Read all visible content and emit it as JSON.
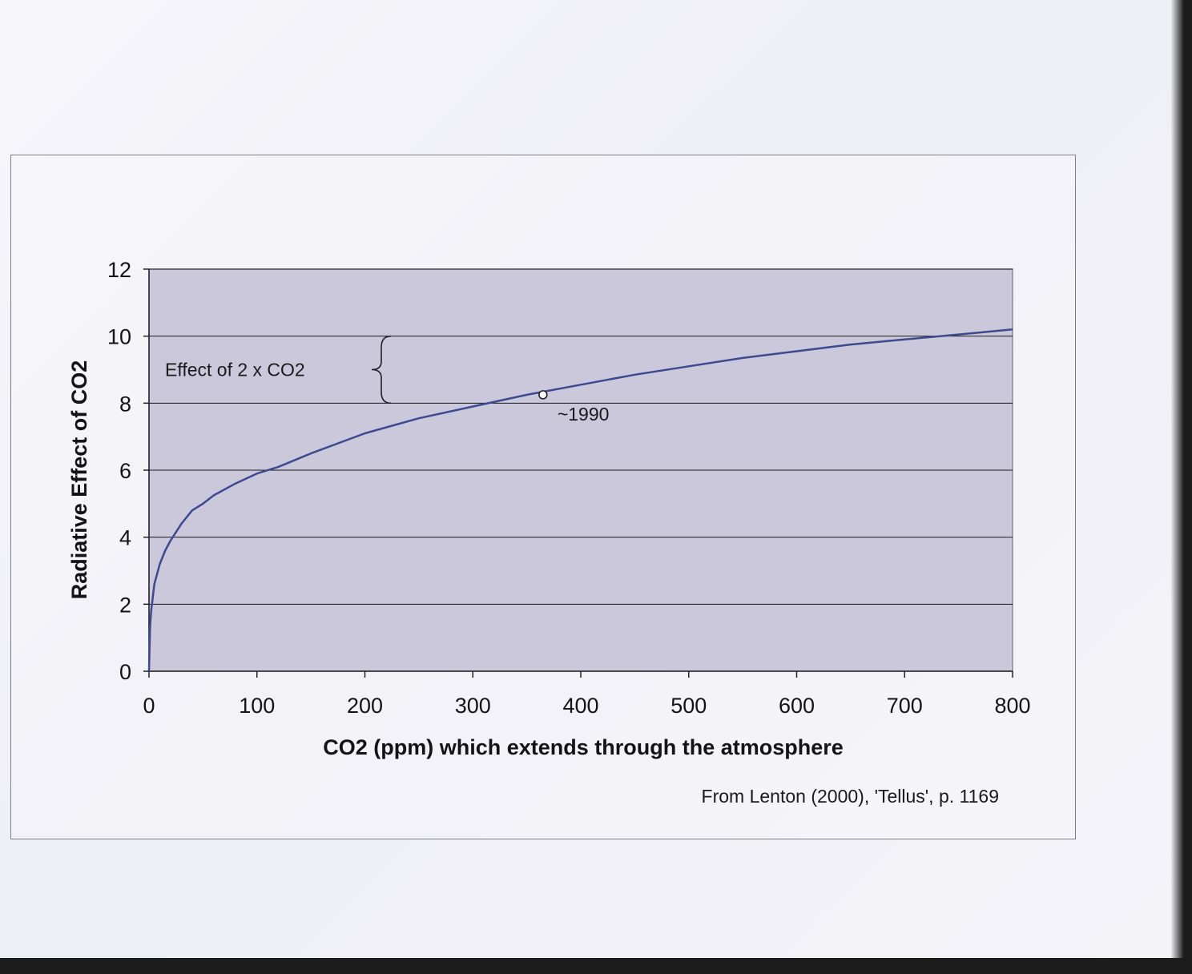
{
  "chart_data": {
    "type": "line",
    "title": "",
    "xlabel": "CO2 (ppm) which extends through the atmosphere",
    "ylabel": "Radiative Effect of CO2",
    "xlim": [
      0,
      800
    ],
    "ylim": [
      0,
      12
    ],
    "xticks": [
      "0",
      "100",
      "200",
      "300",
      "400",
      "500",
      "600",
      "700",
      "800"
    ],
    "yticks": [
      "0",
      "2",
      "4",
      "6",
      "8",
      "10",
      "12"
    ],
    "grid": "horizontal",
    "plot_background": "#cbc8dc",
    "line_color": "#3d4a8f",
    "series": [
      {
        "x": [
          0,
          1,
          2,
          5,
          10,
          15,
          20,
          30,
          40,
          50,
          60,
          80,
          100,
          120,
          150,
          200,
          250,
          300,
          350,
          400,
          450,
          500,
          550,
          600,
          650,
          700,
          750,
          800
        ],
        "y": [
          0,
          1.3,
          1.8,
          2.6,
          3.2,
          3.6,
          3.9,
          4.4,
          4.8,
          5.0,
          5.25,
          5.6,
          5.9,
          6.1,
          6.5,
          7.1,
          7.55,
          7.9,
          8.25,
          8.55,
          8.85,
          9.1,
          9.35,
          9.55,
          9.75,
          9.9,
          10.05,
          10.2
        ]
      }
    ],
    "annotations": [
      {
        "text": "Effect of 2 x CO2",
        "type": "brace",
        "y_from": 8,
        "y_to": 10
      },
      {
        "text": "~1990",
        "type": "point",
        "x": 365,
        "y": 8.25
      }
    ],
    "source_note": "From Lenton (2000), 'Tellus', p. 1169"
  }
}
